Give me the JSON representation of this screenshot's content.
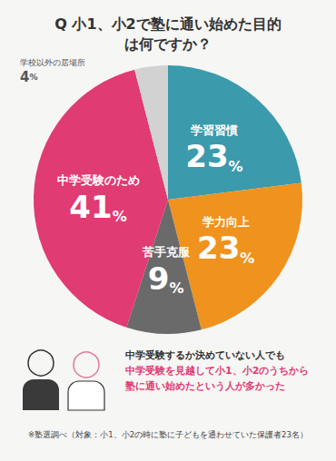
{
  "chart_data": {
    "type": "pie",
    "title": "Q 小1、小2で塾に通い始めた目的は何ですか？",
    "categories": [
      "学習習慣",
      "学力向上",
      "苦手克服",
      "中学受験のため",
      "学校以外の居場所"
    ],
    "values": [
      23,
      23,
      9,
      41,
      4
    ],
    "value_labels": [
      "23%",
      "23%",
      "9%",
      "41%",
      "4%"
    ],
    "colors": [
      "#3b9aab",
      "#f0921e",
      "#6a6a6a",
      "#e03b72",
      "#d2d2d2"
    ],
    "data_labels": true,
    "annotations": [
      "中学受験するか決めていない人でも",
      "中学受験を見越して小1、小2のうちから",
      "塾に通い始めたという人が多かった"
    ],
    "source": "※塾選調べ（対象：小1、小2の時に塾に子どもを通わせていた保護者23名）"
  }
}
